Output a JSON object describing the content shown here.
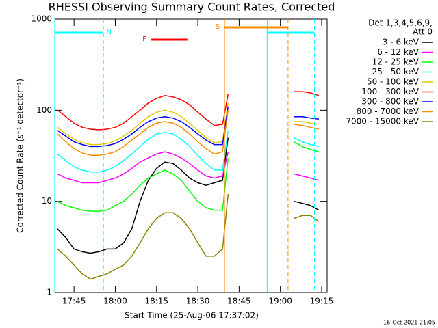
{
  "chart_data": {
    "type": "line",
    "title": "RHESSI Observing Summary Count Rates, Corrected",
    "xlabel": "Start Time (25-Aug-06 17:37:02)",
    "ylabel": "Corrected Count Rate (s⁻¹ detector⁻¹)",
    "legend_title": [
      "Det 1,3,4,5,6,9,",
      "Att 0"
    ],
    "footer": "16-Oct-2021 21:05",
    "log_y": true,
    "ylim": [
      1,
      1000
    ],
    "yticks": [
      1,
      10,
      100,
      1000
    ],
    "xlim": [
      1058,
      1157
    ],
    "xticks": [
      {
        "value": 1065,
        "label": "17:45"
      },
      {
        "value": 1080,
        "label": "18:00"
      },
      {
        "value": 1095,
        "label": "18:15"
      },
      {
        "value": 1110,
        "label": "18:30"
      },
      {
        "value": 1125,
        "label": "18:45"
      },
      {
        "value": 1140,
        "label": "19:00"
      },
      {
        "value": 1155,
        "label": "19:15"
      }
    ],
    "x": [
      1059,
      1062,
      1065,
      1068,
      1071,
      1074,
      1077,
      1080,
      1083,
      1086,
      1089,
      1092,
      1095,
      1098,
      1101,
      1104,
      1107,
      1110,
      1113,
      1116,
      1119,
      1121,
      1133,
      1145,
      1148,
      1151,
      1154
    ],
    "series": [
      {
        "name": "3 - 6 keV",
        "color": "#000000",
        "values": [
          5,
          4,
          3,
          2.8,
          2.7,
          2.8,
          3,
          3,
          3.5,
          5,
          10,
          17,
          23,
          27,
          26,
          22,
          18,
          16,
          15,
          16,
          17,
          50,
          null,
          10,
          9.5,
          9,
          8
        ]
      },
      {
        "name": "6 - 12 keV",
        "color": "#ff00ff",
        "values": [
          20,
          18,
          17,
          16,
          16,
          16,
          17,
          18,
          20,
          23,
          27,
          30,
          33,
          35,
          33,
          30,
          26,
          22,
          19,
          18,
          19,
          35,
          null,
          20,
          19,
          18,
          17
        ]
      },
      {
        "name": "12 - 25 keV",
        "color": "#00ff00",
        "values": [
          10,
          9,
          8.5,
          8,
          7.8,
          7.8,
          8,
          9,
          10,
          12,
          15,
          18,
          20,
          22,
          20,
          17,
          13,
          10,
          8.5,
          8,
          8,
          30,
          null,
          45,
          40,
          37,
          35
        ]
      },
      {
        "name": "25 - 50 keV",
        "color": "#00ffff",
        "values": [
          33,
          28,
          24,
          22,
          21,
          21,
          22,
          24,
          28,
          33,
          40,
          48,
          55,
          57,
          55,
          48,
          40,
          32,
          26,
          22,
          22,
          60,
          null,
          50,
          45,
          42,
          40
        ]
      },
      {
        "name": "50 - 100 keV",
        "color": "#e6c800",
        "values": [
          65,
          55,
          48,
          44,
          42,
          42,
          43,
          46,
          52,
          60,
          72,
          85,
          95,
          100,
          95,
          85,
          72,
          60,
          50,
          44,
          45,
          120,
          null,
          75,
          75,
          72,
          70
        ]
      },
      {
        "name": "100 - 300 keV",
        "color": "#ff0000",
        "values": [
          100,
          85,
          72,
          65,
          62,
          61,
          62,
          65,
          72,
          85,
          100,
          120,
          135,
          145,
          140,
          130,
          115,
          95,
          80,
          68,
          70,
          150,
          null,
          160,
          160,
          155,
          145
        ]
      },
      {
        "name": "300 - 800 keV",
        "color": "#0000ff",
        "values": [
          60,
          52,
          45,
          42,
          40,
          40,
          41,
          43,
          48,
          55,
          65,
          75,
          82,
          85,
          82,
          75,
          65,
          55,
          47,
          42,
          42,
          110,
          null,
          85,
          85,
          82,
          80
        ]
      },
      {
        "name": "800 - 7000 keV",
        "color": "#ff8c00",
        "values": [
          55,
          45,
          38,
          34,
          32,
          32,
          33,
          35,
          40,
          47,
          55,
          65,
          72,
          75,
          72,
          65,
          55,
          45,
          38,
          33,
          35,
          100,
          null,
          70,
          68,
          65,
          62
        ]
      },
      {
        "name": "7000 - 15000 keV",
        "color": "#8b8000",
        "values": [
          3,
          2.5,
          2,
          1.6,
          1.4,
          1.5,
          1.6,
          1.8,
          2,
          2.5,
          3.5,
          5,
          6.5,
          7.5,
          7.5,
          6.5,
          5,
          3.5,
          2.5,
          2.5,
          3,
          12,
          null,
          6.5,
          7,
          7,
          6
        ]
      }
    ],
    "intervals": [
      {
        "label": "N",
        "color": "#00ffff",
        "start": 1058,
        "end": 1075.7
      },
      {
        "color": "#00ffff",
        "start": 1135.2,
        "end": 1152.4
      },
      {
        "label": "S",
        "color": "#ff8c00",
        "start": 1119.7,
        "end": 1142.8
      },
      {
        "label": "F",
        "color": "#ff0000",
        "start": 1093.1,
        "end": 1106.2
      }
    ]
  }
}
